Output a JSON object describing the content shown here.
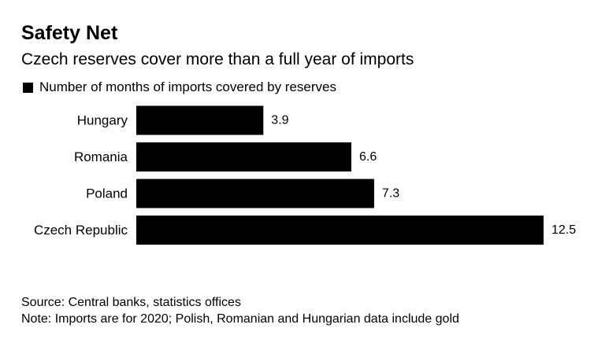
{
  "chart_data": {
    "type": "bar",
    "orientation": "horizontal",
    "title": "Safety Net",
    "subtitle": "Czech reserves cover more than a full year of imports",
    "legend": [
      {
        "name": "Number of months of imports covered by reserves",
        "color": "#000000"
      }
    ],
    "categories": [
      "Hungary",
      "Romania",
      "Poland",
      "Czech Republic"
    ],
    "values": [
      3.9,
      6.6,
      7.3,
      12.5
    ],
    "value_labels": [
      "3.9",
      "6.6",
      "7.3",
      "12.5"
    ],
    "xlim": [
      0,
      12.5
    ],
    "xlabel": "",
    "ylabel": "",
    "grid": false,
    "bar_color": "#000000"
  },
  "footer": {
    "source": "Source: Central banks, statistics offices",
    "note": "Note: Imports are for 2020; Polish, Romanian and Hungarian data include gold"
  }
}
